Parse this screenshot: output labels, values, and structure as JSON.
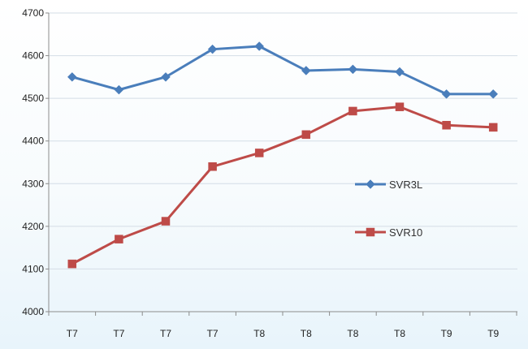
{
  "chart_data": {
    "type": "line",
    "title": "",
    "xlabel": "",
    "ylabel": "",
    "categories": [
      "T7",
      "T7",
      "T7",
      "T7",
      "T8",
      "T8",
      "T8",
      "T8",
      "T9",
      "T9"
    ],
    "ylim": [
      4000,
      4700
    ],
    "yticks": [
      4000,
      4100,
      4200,
      4300,
      4400,
      4500,
      4600,
      4700
    ],
    "grid": true,
    "legend_position": "right",
    "series": [
      {
        "name": "SVR3L",
        "color": "#4a7ebb",
        "marker": "diamond",
        "values": [
          4550,
          4520,
          4550,
          4615,
          4622,
          4565,
          4568,
          4562,
          4510,
          4510
        ]
      },
      {
        "name": "SVR10",
        "color": "#be4b48",
        "marker": "square",
        "values": [
          4112,
          4170,
          4212,
          4340,
          4372,
          4415,
          4470,
          4480,
          4437,
          4432
        ]
      }
    ]
  }
}
